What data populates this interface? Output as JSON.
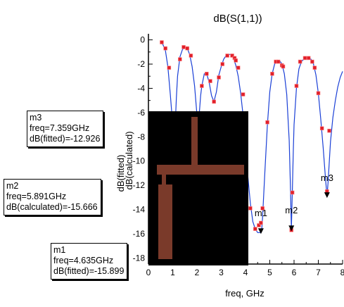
{
  "chart_data": {
    "type": "line",
    "title": "dB(S(1,1))",
    "xlabel": "freq, GHz",
    "ylabel_fitted": "dB(fitted)",
    "ylabel_calculated": "dB(calculated)",
    "xlim": [
      0,
      8
    ],
    "ylim": [
      -18.5,
      0.5
    ],
    "xticks": [
      "0",
      "1",
      "2",
      "3",
      "4",
      "5",
      "6",
      "7",
      "8"
    ],
    "yticks": [
      "0",
      "-2",
      "-4",
      "-6",
      "-8",
      "-10",
      "-12",
      "-14",
      "-16",
      "-18"
    ],
    "colors": {
      "fitted": "#1a3fd6",
      "calculated": "#e0202a",
      "axis": "#000000",
      "inset_bg": "#000000",
      "inset_trace": "#7a3a2a"
    },
    "series": [
      {
        "name": "dB(fitted)",
        "style": "line",
        "x": [
          0.5,
          0.6,
          0.7,
          0.8,
          0.9,
          1.0,
          1.05,
          1.1,
          1.15,
          1.2,
          1.3,
          1.4,
          1.5,
          1.6,
          1.7,
          1.8,
          1.9,
          2.0,
          2.05,
          2.1,
          2.15,
          2.2,
          2.3,
          2.4,
          2.5,
          2.6,
          2.7,
          2.8,
          2.9,
          3.0,
          3.1,
          3.2,
          3.3,
          3.4,
          3.5,
          3.6,
          3.7,
          3.8,
          3.9,
          4.0,
          4.1,
          4.2,
          4.3,
          4.4,
          4.5,
          4.55,
          4.6,
          4.635,
          4.67,
          4.7,
          4.8,
          4.9,
          5.0,
          5.1,
          5.2,
          5.3,
          5.4,
          5.5,
          5.6,
          5.7,
          5.8,
          5.85,
          5.891,
          5.93,
          5.97,
          6.0,
          6.1,
          6.2,
          6.3,
          6.4,
          6.5,
          6.6,
          6.7,
          6.8,
          6.9,
          7.0,
          7.1,
          7.2,
          7.3,
          7.359,
          7.4,
          7.5,
          7.6,
          7.7,
          7.8,
          7.9,
          8.0
        ],
        "y": [
          -0.2,
          -0.4,
          -0.9,
          -2.2,
          -4.5,
          -7.0,
          -8.5,
          -7.3,
          -4.8,
          -3.0,
          -1.4,
          -0.8,
          -0.6,
          -0.7,
          -1.2,
          -2.2,
          -3.8,
          -6.2,
          -7.2,
          -6.0,
          -4.6,
          -3.8,
          -2.8,
          -2.8,
          -3.5,
          -4.6,
          -5.1,
          -4.3,
          -2.9,
          -2.2,
          -1.6,
          -1.3,
          -1.2,
          -1.2,
          -1.5,
          -2.1,
          -3.0,
          -4.4,
          -6.2,
          -8.6,
          -11.3,
          -13.5,
          -15.0,
          -15.6,
          -15.9,
          -15.9,
          -15.9,
          -15.9,
          -15.6,
          -14.8,
          -10.8,
          -7.0,
          -4.3,
          -2.8,
          -2.0,
          -1.7,
          -1.7,
          -2.0,
          -2.8,
          -4.5,
          -8.3,
          -12.0,
          -15.6,
          -12.4,
          -9.0,
          -7.0,
          -4.0,
          -2.4,
          -1.8,
          -1.6,
          -1.5,
          -1.5,
          -1.6,
          -2.0,
          -2.9,
          -4.4,
          -6.5,
          -8.9,
          -11.6,
          -12.9,
          -11.8,
          -8.4,
          -6.4,
          -5.0,
          -3.9,
          -3.1,
          -2.6
        ]
      },
      {
        "name": "dB(calculated)",
        "style": "markers",
        "x": [
          0.55,
          0.7,
          0.85,
          1.0,
          1.1,
          1.3,
          1.45,
          1.6,
          1.75,
          2.0,
          2.2,
          2.4,
          2.55,
          2.7,
          2.9,
          3.05,
          3.25,
          3.45,
          3.55,
          3.6,
          3.7,
          3.9,
          4.0,
          4.2,
          4.4,
          4.55,
          4.635,
          4.7,
          4.9,
          5.1,
          5.25,
          5.35,
          5.5,
          5.55,
          5.891,
          5.93,
          6.1,
          6.25,
          6.45,
          6.6,
          6.75,
          6.85,
          7.0,
          7.15,
          7.359,
          7.45
        ],
        "y": [
          -0.2,
          -0.7,
          -2.3,
          -6.2,
          -6.4,
          -1.6,
          -0.6,
          -0.7,
          -1.3,
          -7.1,
          -3.8,
          -2.8,
          -3.4,
          -5.1,
          -3.1,
          -2.0,
          -1.3,
          -1.3,
          -1.5,
          -1.7,
          -2.3,
          -4.5,
          -6.3,
          -13.9,
          -15.6,
          -15.3,
          -15.1,
          -13.9,
          -6.8,
          -2.8,
          -1.8,
          -1.8,
          -2.1,
          -2.2,
          -15.7,
          -12.6,
          -3.8,
          -1.8,
          -1.5,
          -1.5,
          -1.8,
          -2.3,
          -4.4,
          -7.3,
          -12.5,
          -7.5
        ]
      }
    ],
    "markers": [
      {
        "label": "m1",
        "freq_line": "freq=4.635GHz",
        "value_line": "dB(fitted)=-15.899",
        "x": 4.635,
        "y": -15.899
      },
      {
        "label": "m2",
        "freq_line": "freq=5.891GHz",
        "value_line": "dB(calculated)=-15.666",
        "x": 5.891,
        "y": -15.666
      },
      {
        "label": "m3",
        "freq_line": "freq=7.359GHz",
        "value_line": "dB(fitted)=-12.926",
        "x": 7.359,
        "y": -12.926
      }
    ],
    "grid": false,
    "inset": "layout-image"
  }
}
